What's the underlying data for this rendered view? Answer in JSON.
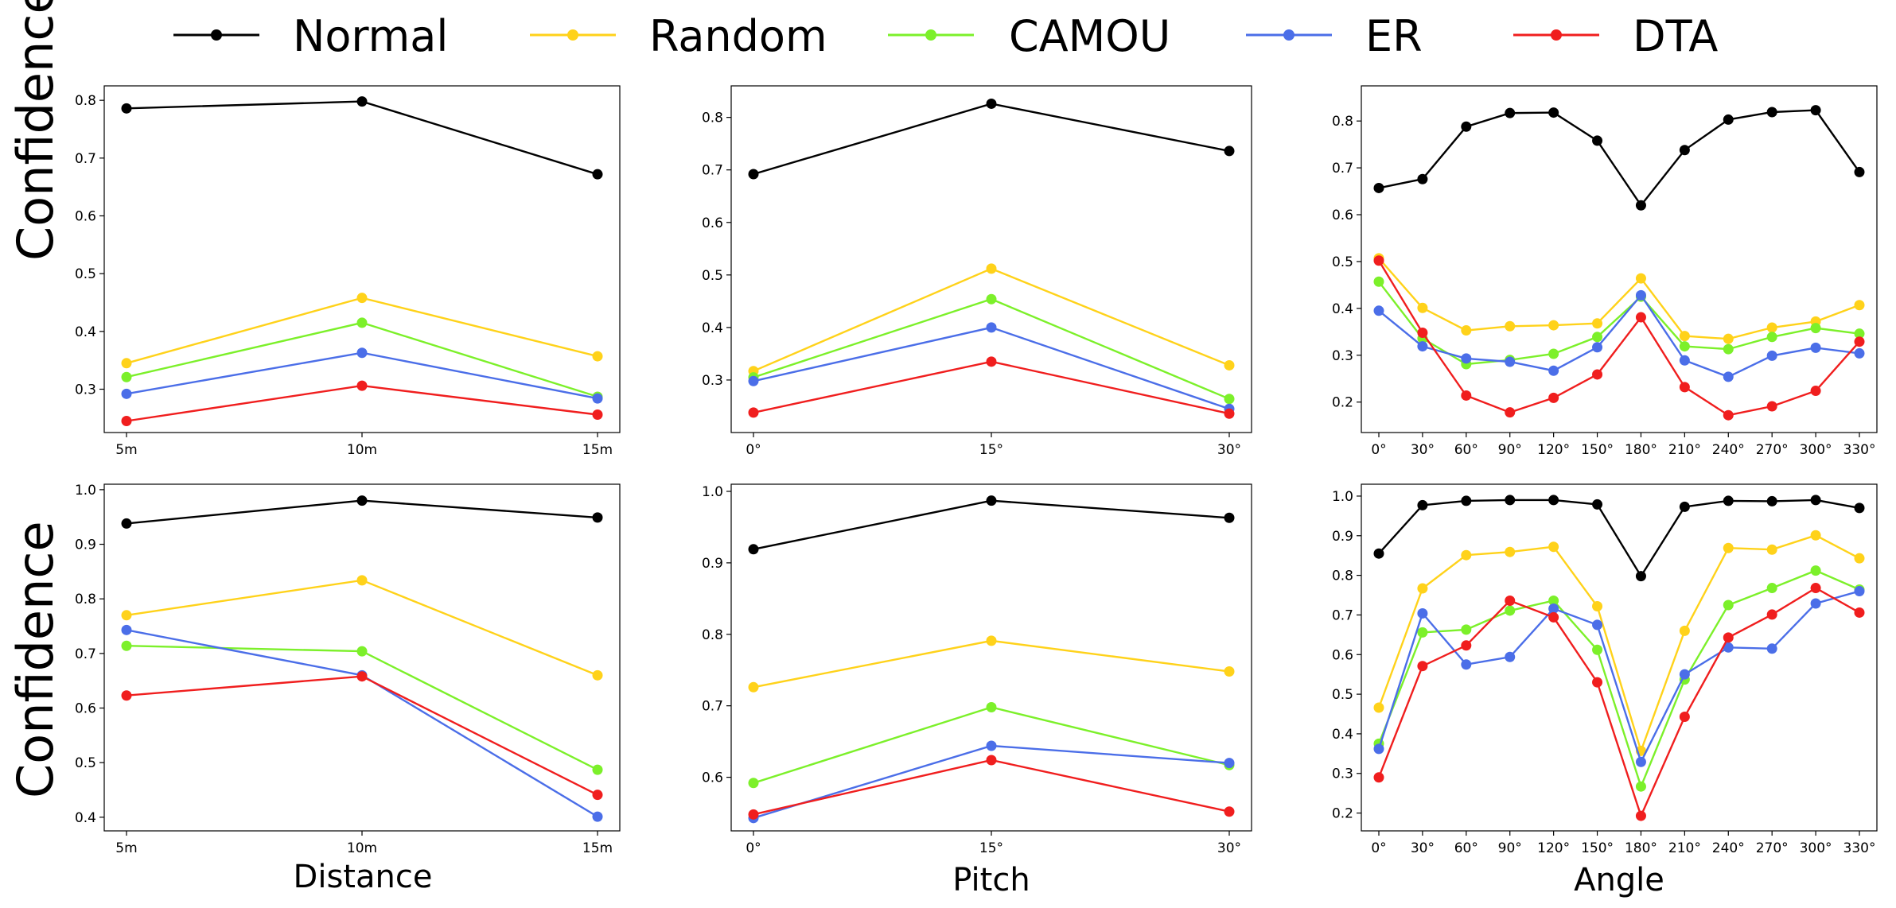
{
  "chart_data": {
    "type": "line",
    "legend_position": "top",
    "series_names": [
      "Normal",
      "Random",
      "CAMOU",
      "ER",
      "DTA"
    ],
    "colors": {
      "Normal": "#000000",
      "Random": "#FFD21A",
      "CAMOU": "#7CF02A",
      "ER": "#4B6EE8",
      "DTA": "#F01E1E"
    },
    "row_ylabels": [
      "Confidence",
      "Confidence"
    ],
    "col_xlabels": [
      "Distance",
      "Pitch",
      "Angle"
    ],
    "panels": [
      {
        "id": "distance-top",
        "categories": [
          "5m",
          "10m",
          "15m"
        ],
        "ylim": [
          0.225,
          0.825
        ],
        "yticks": [
          "0.3",
          "0.4",
          "0.5",
          "0.6",
          "0.7",
          "0.8"
        ],
        "series": [
          {
            "name": "Normal",
            "values": [
              0.786,
              0.798,
              0.672
            ]
          },
          {
            "name": "Random",
            "values": [
              0.345,
              0.458,
              0.357
            ]
          },
          {
            "name": "CAMOU",
            "values": [
              0.321,
              0.415,
              0.287
            ]
          },
          {
            "name": "ER",
            "values": [
              0.292,
              0.363,
              0.284
            ]
          },
          {
            "name": "DTA",
            "values": [
              0.245,
              0.306,
              0.256
            ]
          }
        ]
      },
      {
        "id": "pitch-top",
        "categories": [
          "0°",
          "15°",
          "30°"
        ],
        "ylim": [
          0.2,
          0.86
        ],
        "yticks": [
          "0.3",
          "0.4",
          "0.5",
          "0.6",
          "0.7",
          "0.8"
        ],
        "series": [
          {
            "name": "Normal",
            "values": [
              0.692,
              0.826,
              0.736
            ]
          },
          {
            "name": "Random",
            "values": [
              0.317,
              0.512,
              0.328
            ]
          },
          {
            "name": "CAMOU",
            "values": [
              0.305,
              0.454,
              0.264
            ]
          },
          {
            "name": "ER",
            "values": [
              0.298,
              0.4,
              0.245
            ]
          },
          {
            "name": "DTA",
            "values": [
              0.238,
              0.335,
              0.236
            ]
          }
        ]
      },
      {
        "id": "angle-top",
        "categories": [
          "0°",
          "30°",
          "60°",
          "90°",
          "120°",
          "150°",
          "180°",
          "210°",
          "240°",
          "270°",
          "300°",
          "330°"
        ],
        "ylim": [
          0.135,
          0.875
        ],
        "yticks": [
          "0.2",
          "0.3",
          "0.4",
          "0.5",
          "0.6",
          "0.7",
          "0.8"
        ],
        "series": [
          {
            "name": "Normal",
            "values": [
              0.657,
              0.676,
              0.788,
              0.817,
              0.818,
              0.758,
              0.62,
              0.738,
              0.803,
              0.819,
              0.823,
              0.691
            ]
          },
          {
            "name": "Random",
            "values": [
              0.507,
              0.401,
              0.353,
              0.362,
              0.364,
              0.368,
              0.464,
              0.341,
              0.335,
              0.359,
              0.372,
              0.407
            ]
          },
          {
            "name": "CAMOU",
            "values": [
              0.457,
              0.336,
              0.281,
              0.29,
              0.303,
              0.339,
              0.425,
              0.319,
              0.313,
              0.339,
              0.358,
              0.346
            ]
          },
          {
            "name": "ER",
            "values": [
              0.395,
              0.319,
              0.293,
              0.286,
              0.267,
              0.317,
              0.428,
              0.289,
              0.254,
              0.299,
              0.316,
              0.304
            ]
          },
          {
            "name": "DTA",
            "values": [
              0.502,
              0.348,
              0.214,
              0.178,
              0.209,
              0.259,
              0.381,
              0.232,
              0.172,
              0.191,
              0.224,
              0.329
            ]
          }
        ]
      },
      {
        "id": "distance-bottom",
        "categories": [
          "5m",
          "10m",
          "15m"
        ],
        "ylim": [
          0.375,
          1.01
        ],
        "yticks": [
          "0.4",
          "0.5",
          "0.6",
          "0.7",
          "0.8",
          "0.9",
          "1.0"
        ],
        "series": [
          {
            "name": "Normal",
            "values": [
              0.938,
              0.98,
              0.949
            ]
          },
          {
            "name": "Random",
            "values": [
              0.77,
              0.834,
              0.66
            ]
          },
          {
            "name": "CAMOU",
            "values": [
              0.714,
              0.704,
              0.487
            ]
          },
          {
            "name": "ER",
            "values": [
              0.743,
              0.66,
              0.401
            ]
          },
          {
            "name": "DTA",
            "values": [
              0.623,
              0.658,
              0.441
            ]
          }
        ]
      },
      {
        "id": "pitch-bottom",
        "categories": [
          "0°",
          "15°",
          "30°"
        ],
        "ylim": [
          0.525,
          1.01
        ],
        "yticks": [
          "0.6",
          "0.7",
          "0.8",
          "0.9",
          "1.0"
        ],
        "series": [
          {
            "name": "Normal",
            "values": [
              0.919,
              0.987,
              0.963
            ]
          },
          {
            "name": "Random",
            "values": [
              0.726,
              0.791,
              0.748
            ]
          },
          {
            "name": "CAMOU",
            "values": [
              0.592,
              0.698,
              0.617
            ]
          },
          {
            "name": "ER",
            "values": [
              0.543,
              0.644,
              0.62
            ]
          },
          {
            "name": "DTA",
            "values": [
              0.548,
              0.624,
              0.552
            ]
          }
        ]
      },
      {
        "id": "angle-bottom",
        "categories": [
          "0°",
          "30°",
          "60°",
          "90°",
          "120°",
          "150°",
          "180°",
          "210°",
          "240°",
          "270°",
          "300°",
          "330°"
        ],
        "ylim": [
          0.155,
          1.03
        ],
        "yticks": [
          "0.2",
          "0.3",
          "0.4",
          "0.5",
          "0.6",
          "0.7",
          "0.8",
          "0.9",
          "1.0"
        ],
        "series": [
          {
            "name": "Normal",
            "values": [
              0.855,
              0.977,
              0.988,
              0.99,
              0.99,
              0.979,
              0.798,
              0.973,
              0.988,
              0.987,
              0.99,
              0.97
            ]
          },
          {
            "name": "Random",
            "values": [
              0.466,
              0.767,
              0.851,
              0.859,
              0.872,
              0.722,
              0.357,
              0.66,
              0.869,
              0.865,
              0.901,
              0.843
            ]
          },
          {
            "name": "CAMOU",
            "values": [
              0.375,
              0.656,
              0.663,
              0.711,
              0.736,
              0.612,
              0.267,
              0.537,
              0.725,
              0.768,
              0.812,
              0.764
            ]
          },
          {
            "name": "ER",
            "values": [
              0.362,
              0.704,
              0.575,
              0.594,
              0.716,
              0.675,
              0.329,
              0.55,
              0.618,
              0.615,
              0.729,
              0.76
            ]
          },
          {
            "name": "DTA",
            "values": [
              0.29,
              0.571,
              0.623,
              0.736,
              0.694,
              0.53,
              0.193,
              0.443,
              0.643,
              0.701,
              0.768,
              0.706
            ]
          }
        ]
      }
    ]
  }
}
